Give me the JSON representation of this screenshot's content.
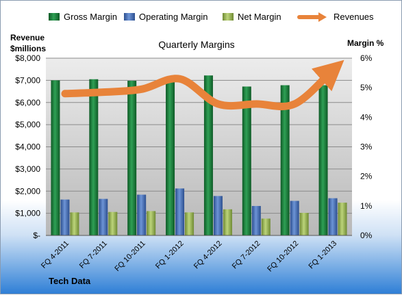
{
  "chart_data": {
    "type": "bar",
    "title": "Quarterly Margins",
    "categories": [
      "FQ 4-2011",
      "FQ 7-2011",
      "FQ 10-2011",
      "FQ 1-2012",
      "FQ 4-2012",
      "FQ 7-2012",
      "FQ 10-2012",
      "FQ 1-2013"
    ],
    "left_axis_label_line1": "Revenue",
    "left_axis_label_line2": "$millions",
    "right_axis_label": "Margin %",
    "left_ylim": [
      0,
      8000
    ],
    "right_ylim": [
      0,
      6
    ],
    "left_ticks": [
      "$-",
      "$1,000",
      "$2,000",
      "$3,000",
      "$4,000",
      "$5,000",
      "$6,000",
      "$7,000",
      "$8,000"
    ],
    "right_ticks": [
      "0%",
      "1%",
      "2%",
      "3%",
      "4%",
      "5%",
      "6%"
    ],
    "series": [
      {
        "name": "Gross Margin",
        "axis": "left",
        "type": "bar",
        "color": "#1f7a3c",
        "values": [
          7000,
          7050,
          6980,
          7000,
          7220,
          6720,
          6780,
          6780
        ]
      },
      {
        "name": "Operating Margin",
        "axis": "left",
        "type": "bar",
        "color": "#4a73b8",
        "values": [
          1620,
          1650,
          1840,
          2120,
          1780,
          1330,
          1560,
          1680
        ]
      },
      {
        "name": "Net Margin",
        "axis": "left",
        "type": "bar",
        "color": "#9bb55a",
        "values": [
          1040,
          1060,
          1100,
          1040,
          1180,
          760,
          1020,
          1480
        ]
      },
      {
        "name": "Revenues",
        "axis": "right",
        "type": "line",
        "color": "#e8833a",
        "values": [
          4.8,
          4.85,
          4.95,
          5.3,
          4.45,
          4.45,
          4.45,
          5.6
        ]
      }
    ],
    "grid": true,
    "legend_position": "top",
    "footer_label": "Tech Data"
  }
}
